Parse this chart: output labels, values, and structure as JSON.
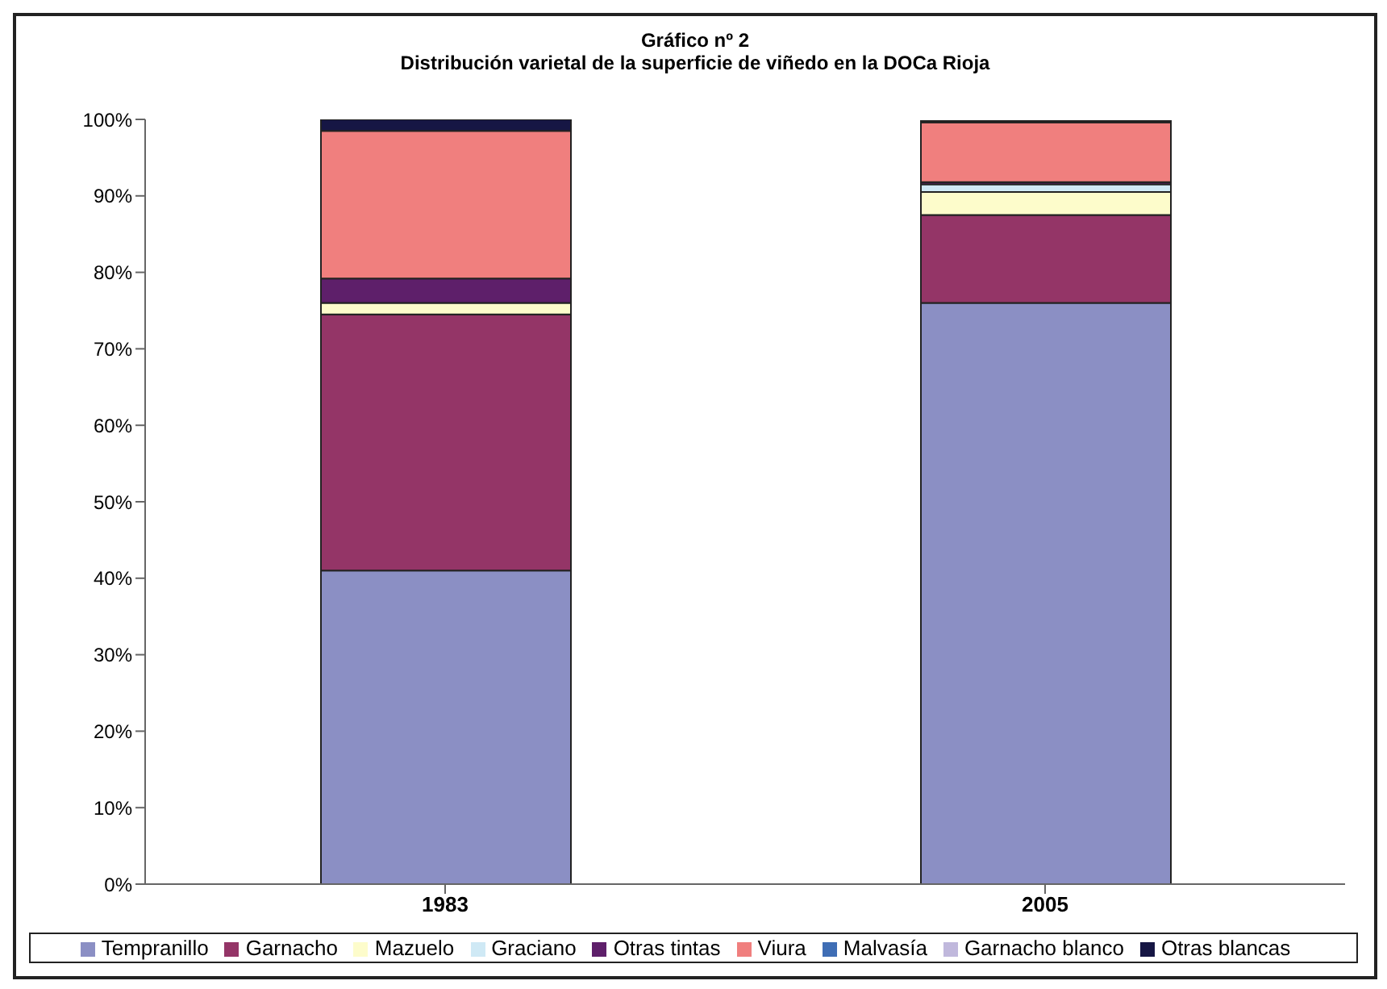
{
  "chart_data": {
    "type": "bar",
    "title": "Gráfico nº 2",
    "subtitle": "Distribución varietal de la superficie de viñedo en la DOCa Rioja",
    "categories": [
      "1983",
      "2005"
    ],
    "stacked": true,
    "ylim": [
      0,
      100
    ],
    "yticks": [
      {
        "value": 0,
        "label": "0%"
      },
      {
        "value": 10,
        "label": "10%"
      },
      {
        "value": 20,
        "label": "20%"
      },
      {
        "value": 30,
        "label": "30%"
      },
      {
        "value": 40,
        "label": "40%"
      },
      {
        "value": 50,
        "label": "50%"
      },
      {
        "value": 60,
        "label": "60%"
      },
      {
        "value": 70,
        "label": "70%"
      },
      {
        "value": 80,
        "label": "80%"
      },
      {
        "value": 90,
        "label": "90%"
      },
      {
        "value": 100,
        "label": "100%"
      }
    ],
    "grid": false,
    "legend": "bottom",
    "series": [
      {
        "name": "Tempranillo",
        "color": "#8b8fc4",
        "values": [
          41,
          76
        ]
      },
      {
        "name": "Garnacho",
        "color": "#943567",
        "values": [
          33.5,
          11.5
        ]
      },
      {
        "name": "Mazuelo",
        "color": "#fdfccb",
        "values": [
          1.5,
          3
        ]
      },
      {
        "name": "Graciano",
        "color": "#cfe9f5",
        "values": [
          null,
          1
        ]
      },
      {
        "name": "Otras tintas",
        "color": "#5e1f6a",
        "values": [
          3.2,
          0.3
        ]
      },
      {
        "name": "Viura",
        "color": "#f07f7e",
        "values": [
          19.3,
          7.8
        ]
      },
      {
        "name": "Malvasía",
        "color": "#3f6eb5",
        "values": [
          null,
          null
        ]
      },
      {
        "name": "Garnacho blanco",
        "color": "#c0b8dc",
        "values": [
          null,
          null
        ]
      },
      {
        "name": "Otras blancas",
        "color": "#161644",
        "values": [
          1.5,
          0.2
        ]
      }
    ]
  }
}
